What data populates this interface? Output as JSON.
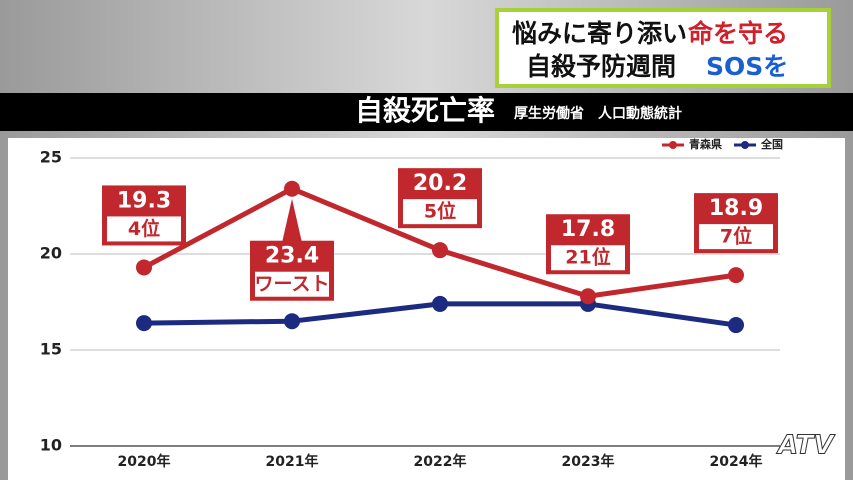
{
  "header": {
    "line1": "悩みに寄り添い",
    "line1_accent": "命を守る",
    "line2": "自殺予防週間",
    "line2_accent": "SOSを"
  },
  "chart_data": {
    "type": "line",
    "title": "自殺死亡率",
    "subtitle": "厚生労働省　人口動態統計",
    "categories": [
      "2020年",
      "2021年",
      "2022年",
      "2023年",
      "2024年"
    ],
    "series": [
      {
        "name": "青森県",
        "color": "#c0282d",
        "values": [
          19.3,
          23.4,
          20.2,
          17.8,
          18.9
        ],
        "rank_labels": [
          "4位",
          "ワースト",
          "5位",
          "21位",
          "7位"
        ]
      },
      {
        "name": "全国",
        "color": "#1c2a80",
        "values": [
          16.4,
          16.5,
          17.4,
          17.4,
          16.3
        ]
      }
    ],
    "ylim": [
      10,
      25
    ],
    "yticks": [
      10,
      15,
      20,
      25
    ],
    "grid": true,
    "legend": "top-right"
  },
  "logo": "ATV"
}
